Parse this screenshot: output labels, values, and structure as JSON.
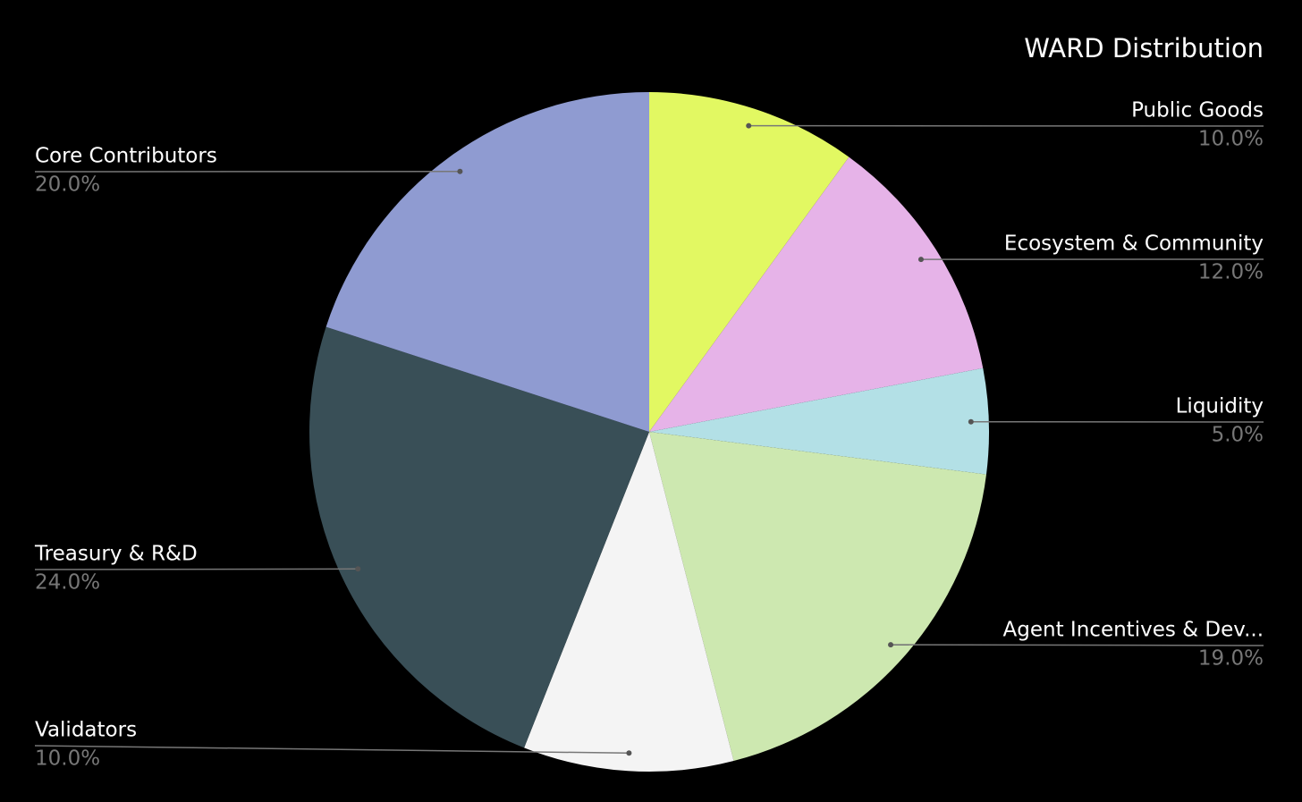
{
  "chart_data": {
    "type": "pie",
    "title": "WARD Distribution",
    "categories": [
      "Public Goods",
      "Ecosystem & Community",
      "Liquidity",
      "Agent Incentives & Dev...",
      "Validators",
      "Treasury & R&D",
      "Core Contributors"
    ],
    "values": [
      10,
      12,
      5,
      19,
      10,
      24,
      20
    ],
    "value_labels": [
      "10.0%",
      "12.0%",
      "5.0%",
      "19.0%",
      "10.0%",
      "24.0%",
      "20.0%"
    ],
    "colors": [
      "#e2f862",
      "#e6b3e8",
      "#b3e0e6",
      "#cde8b0",
      "#f4f4f4",
      "#394f57",
      "#8f9bd1"
    ]
  }
}
